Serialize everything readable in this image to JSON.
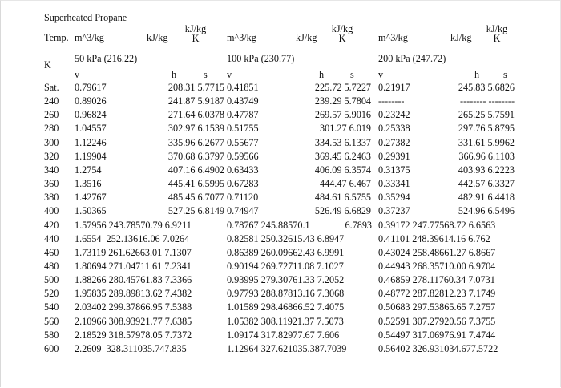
{
  "title": "Superheated Propane",
  "header": {
    "temp": "Temp.",
    "k": "K",
    "groups": [
      {
        "vol": "m^3/kg",
        "ent": "kJ/kg",
        "entr_top": "kJ/kg",
        "entr_bot": "K",
        "pressure": "50 kPa (216.22)"
      },
      {
        "vol": "m^3/kg",
        "ent": "kJ/kg",
        "entr_top": "kJ/kg",
        "entr_bot": "K",
        "pressure": "100 kPa (230.77)"
      },
      {
        "vol": "m^3/kg",
        "ent": "kJ/kg",
        "entr_top": "kJ/kg",
        "entr_bot": "K",
        "pressure": "200 kPa (247.72)"
      }
    ],
    "sub": [
      "v",
      "h",
      "s"
    ]
  },
  "rows": [
    {
      "t": "Sat.",
      "a": [
        "0.79617",
        "208.31 5.7715"
      ],
      "b": [
        "0.41851",
        "225.72 5.7227"
      ],
      "c": [
        "0.21917",
        "245.83 5.6826"
      ]
    },
    {
      "t": "240",
      "a": [
        "0.89026",
        "241.87 5.9187"
      ],
      "b": [
        "0.43749",
        "239.29 5.7804"
      ],
      "c": [
        "--------",
        "-------- --------"
      ]
    },
    {
      "t": "260",
      "a": [
        "0.96824",
        "271.64 6.0378"
      ],
      "b": [
        "0.47787",
        "269.57 5.9016"
      ],
      "c": [
        "0.23242",
        "265.25 5.7591"
      ]
    },
    {
      "t": "280",
      "a": [
        "1.04557",
        "302.97 6.1539"
      ],
      "b": [
        "0.51755",
        "301.27 6.019"
      ],
      "c": [
        "0.25338",
        "297.76 5.8795"
      ]
    },
    {
      "t": "300",
      "a": [
        "1.12246",
        "335.96 6.2677"
      ],
      "b": [
        "0.55677",
        "334.53 6.1337"
      ],
      "c": [
        "0.27382",
        "331.61 5.9962"
      ]
    },
    {
      "t": "320",
      "a": [
        "1.19904",
        "370.68 6.3797"
      ],
      "b": [
        "0.59566",
        "369.45 6.2463"
      ],
      "c": [
        "0.29391",
        "366.96 6.1103"
      ]
    },
    {
      "t": "340",
      "a": [
        "1.2754",
        "407.16 6.4902"
      ],
      "b": [
        "0.63433",
        "406.09 6.3574"
      ],
      "c": [
        "0.31375",
        "403.93 6.2223"
      ]
    },
    {
      "t": "360",
      "a": [
        "1.3516",
        "445.41 6.5995"
      ],
      "b": [
        "0.67283",
        "444.47 6.467"
      ],
      "c": [
        "0.33341",
        "442.57 6.3327"
      ]
    },
    {
      "t": "380",
      "a": [
        "1.42767",
        "485.45 6.7077"
      ],
      "b": [
        "0.71120",
        "484.61 6.5755"
      ],
      "c": [
        "0.35294",
        "482.91 6.4418"
      ]
    },
    {
      "t": "400",
      "a": [
        "1.50365",
        "527.25 6.8149"
      ],
      "b": [
        "0.74947",
        "526.49 6.6829"
      ],
      "c": [
        "0.37237",
        "524.96 6.5496"
      ]
    },
    {
      "t": "420",
      "a": [
        "1.57956 243.78570.79 6.9211"
      ],
      "b": [
        "0.78767 245.88570.1",
        "6.7893"
      ],
      "c": [
        "0.39172 247.77568.72 6.6563"
      ]
    },
    {
      "t": "440",
      "a": [
        "1.6554  252.13616.06 7.0264"
      ],
      "b": [
        "0.82581 250.32615.43 6.8947"
      ],
      "c": [
        "0.41101 248.39614.16 6.762"
      ]
    },
    {
      "t": "460",
      "a": [
        "1.73119 261.62663.01 7.1307"
      ],
      "b": [
        "0.86389 260.09662.43 6.9991"
      ],
      "c": [
        "0.43024 258.48661.27 6.8667"
      ]
    },
    {
      "t": "480",
      "a": [
        "1.80694 271.04711.61 7.2341"
      ],
      "b": [
        "0.90194 269.72711.08 7.1027"
      ],
      "c": [
        "0.44943 268.35710.00 6.9704"
      ]
    },
    {
      "t": "500",
      "a": [
        "1.88266 280.45761.83 7.3366"
      ],
      "b": [
        "0.93995 279.30761.33 7.2052"
      ],
      "c": [
        "0.46859 278.11760.34 7.0731"
      ]
    },
    {
      "t": "520",
      "a": [
        "1.95835 289.89813.62 7.4382"
      ],
      "b": [
        "0.97793 288.87813.16 7.3068"
      ],
      "c": [
        "0.48772 287.82812.23 7.1749"
      ]
    },
    {
      "t": "540",
      "a": [
        "2.03402 299.37866.95 7.5388"
      ],
      "b": [
        "1.01589 298.46866.52 7.4075"
      ],
      "c": [
        "0.50683 297.53865.65 7.2757"
      ]
    },
    {
      "t": "560",
      "a": [
        "2.10966 308.93921.77 7.6385"
      ],
      "b": [
        "1.05382 308.11921.37 7.5073"
      ],
      "c": [
        "0.52591 307.27920.56 7.3755"
      ]
    },
    {
      "t": "580",
      "a": [
        "2.18529 318.57978.05 7.7372"
      ],
      "b": [
        "1.09174 317.82977.67 7.606"
      ],
      "c": [
        "0.54497 317.06976.91 7.4744"
      ]
    },
    {
      "t": "600",
      "a": [
        "2.2609  328.311035.747.835"
      ],
      "b": [
        "1.12964 327.621035.387.7039"
      ],
      "c": [
        "0.56402 326.931034.677.5722"
      ]
    }
  ]
}
